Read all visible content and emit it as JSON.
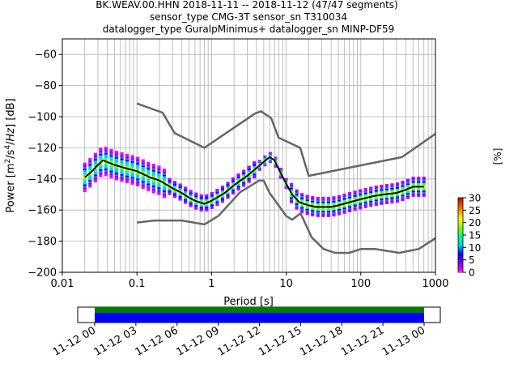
{
  "title": {
    "line1": "BK.WEAV.00.HHN   2018-11-11 -- 2018-11-12  (47/47 segments)",
    "line2": "sensor_type CMG-3T sensor_sn T310034",
    "line3": "datalogger_type GuralpMinimus+ datalogger_sn MINP-DF59"
  },
  "chart_data": [
    {
      "type": "heatmap",
      "xlabel": "Period [s]",
      "ylabel": "Power [m²/s⁴/Hz] [dB]",
      "xscale": "log",
      "xlim": [
        0.01,
        1000
      ],
      "ylim": [
        -200,
        -50
      ],
      "grid": true,
      "x_ticks": [
        0.01,
        0.1,
        1,
        10,
        100,
        1000
      ],
      "x_tick_labels": [
        "0.01",
        "0.1",
        "1",
        "10",
        "100",
        "1000"
      ],
      "y_ticks": [
        -200,
        -180,
        -160,
        -140,
        -120,
        -100,
        -80,
        -60
      ],
      "y_tick_labels": [
        "−200",
        "−180",
        "−160",
        "−140",
        "−120",
        "−100",
        "−80",
        "−60"
      ],
      "colorbar": {
        "label": "[%]",
        "min": 0,
        "max": 30,
        "ticks": [
          0,
          5,
          10,
          15,
          20,
          25,
          30
        ],
        "colormap": "pqlx"
      },
      "series": [
        {
          "role": "mean",
          "color": "#000000",
          "x": [
            0.02,
            0.025,
            0.03,
            0.035,
            0.05,
            0.07,
            0.1,
            0.15,
            0.2,
            0.3,
            0.4,
            0.5,
            0.6,
            0.8,
            1.0,
            1.5,
            2,
            3,
            4,
            5,
            6,
            7,
            8,
            10,
            12,
            15,
            20,
            25,
            30,
            40,
            50,
            70,
            100,
            150,
            200,
            300,
            400,
            500,
            700
          ],
          "y": [
            -139,
            -135,
            -131,
            -128,
            -131,
            -133,
            -135,
            -139,
            -141,
            -146,
            -149,
            -152,
            -154,
            -156,
            -154,
            -149,
            -144,
            -138,
            -133,
            -129,
            -126,
            -128,
            -134,
            -143,
            -150,
            -155,
            -157,
            -158,
            -158,
            -158,
            -157,
            -155,
            -153,
            -151,
            -150,
            -149,
            -147,
            -145,
            -145
          ]
        },
        {
          "role": "new-high-noise-model",
          "color": "#666666",
          "x": [
            0.1,
            0.22,
            0.32,
            0.8,
            3.8,
            4.6,
            6.3,
            7.9,
            15.4,
            20,
            354.8,
            1000
          ],
          "y": [
            -91.5,
            -97.4,
            -110.5,
            -120,
            -98,
            -96.5,
            -101,
            -113.5,
            -120,
            -138,
            -126,
            -111
          ]
        },
        {
          "role": "new-low-noise-model",
          "color": "#666666",
          "x": [
            0.1,
            0.17,
            0.4,
            0.8,
            1.24,
            2.4,
            4.3,
            5.0,
            6.0,
            10.0,
            12.0,
            15.6,
            21.9,
            31.6,
            45,
            70,
            101,
            154,
            328,
            600,
            1000
          ],
          "y": [
            -168,
            -166.7,
            -166.7,
            -169.2,
            -163.7,
            -148.6,
            -141.1,
            -141.1,
            -149,
            -163.8,
            -166.2,
            -162.1,
            -177.5,
            -185,
            -187.5,
            -187.5,
            -185,
            -185,
            -187.5,
            -185,
            -178
          ]
        }
      ]
    },
    {
      "type": "bar",
      "xlim_labels": [
        "11-12 00",
        "11-12 03",
        "11-12 06",
        "11-12 09",
        "11-12 12",
        "11-12 15",
        "11-12 18",
        "11-12 21",
        "11-13 00"
      ],
      "series": [
        {
          "name": "",
          "color": "#008000",
          "start": "11-12 00",
          "end": "11-13 00"
        },
        {
          "name": "",
          "color": "#0000ff",
          "start": "11-12 00",
          "end": "11-13 00"
        }
      ]
    }
  ]
}
